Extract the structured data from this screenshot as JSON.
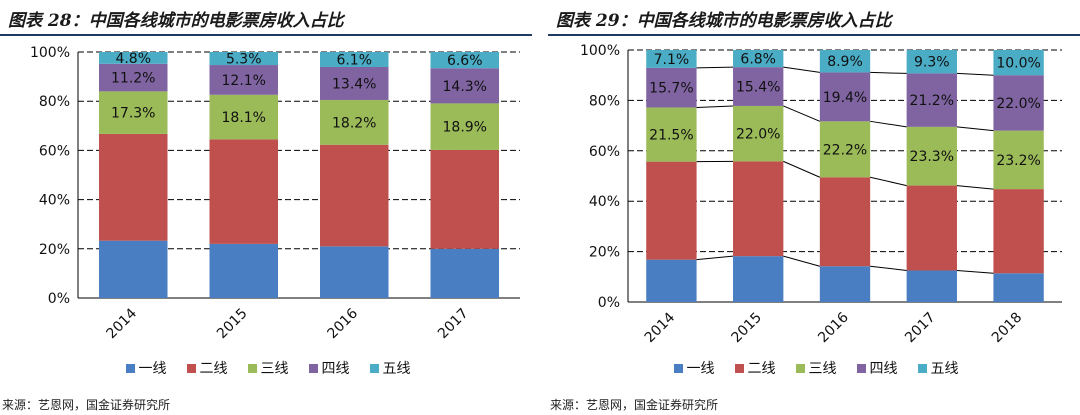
{
  "colors": [
    "#4a7ec3",
    "#c0504d",
    "#9bbb59",
    "#8064a2",
    "#4bacc6"
  ],
  "chart_data": [
    {
      "type": "bar",
      "stacked": true,
      "title": "图表 28：中国各线城市的电影票房收入占比",
      "categories": [
        "2014",
        "2015",
        "2016",
        "2017"
      ],
      "ylim": [
        0,
        100
      ],
      "yticks": [
        "0%",
        "20%",
        "40%",
        "60%",
        "80%",
        "100%"
      ],
      "series": [
        {
          "name": "一线",
          "values": [
            23.3,
            22.0,
            21.0,
            20.0
          ],
          "labels": []
        },
        {
          "name": "二线",
          "values": [
            43.4,
            42.5,
            41.3,
            40.2
          ],
          "labels": []
        },
        {
          "name": "三线",
          "values": [
            17.3,
            18.1,
            18.2,
            18.9
          ],
          "labels": [
            "17.3%",
            "18.1%",
            "18.2%",
            "18.9%"
          ]
        },
        {
          "name": "四线",
          "values": [
            11.2,
            12.1,
            13.4,
            14.3
          ],
          "labels": [
            "11.2%",
            "12.1%",
            "13.4%",
            "14.3%"
          ]
        },
        {
          "name": "五线",
          "values": [
            4.8,
            5.3,
            6.1,
            6.6
          ],
          "labels": [
            "4.8%",
            "5.3%",
            "6.1%",
            "6.6%"
          ]
        }
      ],
      "legend": [
        "一线",
        "二线",
        "三线",
        "四线",
        "五线"
      ],
      "source": "来源：艺恩网，国金证券研究所"
    },
    {
      "type": "bar",
      "stacked": true,
      "connector_lines": true,
      "title": "图表 29：中国各线城市的电影票房收入占比",
      "categories": [
        "2014",
        "2015",
        "2016",
        "2017",
        "2018"
      ],
      "ylim": [
        0,
        100
      ],
      "yticks": [
        "0%",
        "20%",
        "40%",
        "60%",
        "80%",
        "100%"
      ],
      "series": [
        {
          "name": "一线",
          "values": [
            16.8,
            18.2,
            14.2,
            12.5,
            11.4
          ],
          "labels": []
        },
        {
          "name": "二线",
          "values": [
            38.9,
            37.6,
            35.3,
            33.7,
            33.4
          ],
          "labels": []
        },
        {
          "name": "三线",
          "values": [
            21.5,
            22.0,
            22.2,
            23.3,
            23.2
          ],
          "labels": [
            "21.5%",
            "22.0%",
            "22.2%",
            "23.3%",
            "23.2%"
          ]
        },
        {
          "name": "四线",
          "values": [
            15.7,
            15.4,
            19.4,
            21.2,
            22.0
          ],
          "labels": [
            "15.7%",
            "15.4%",
            "19.4%",
            "21.2%",
            "22.0%"
          ]
        },
        {
          "name": "五线",
          "values": [
            7.1,
            6.8,
            8.9,
            9.3,
            10.0
          ],
          "labels": [
            "7.1%",
            "6.8%",
            "8.9%",
            "9.3%",
            "10.0%"
          ]
        }
      ],
      "legend": [
        "一线",
        "二线",
        "三线",
        "四线",
        "五线"
      ],
      "source": "来源：艺恩网，国金证券研究所"
    }
  ]
}
